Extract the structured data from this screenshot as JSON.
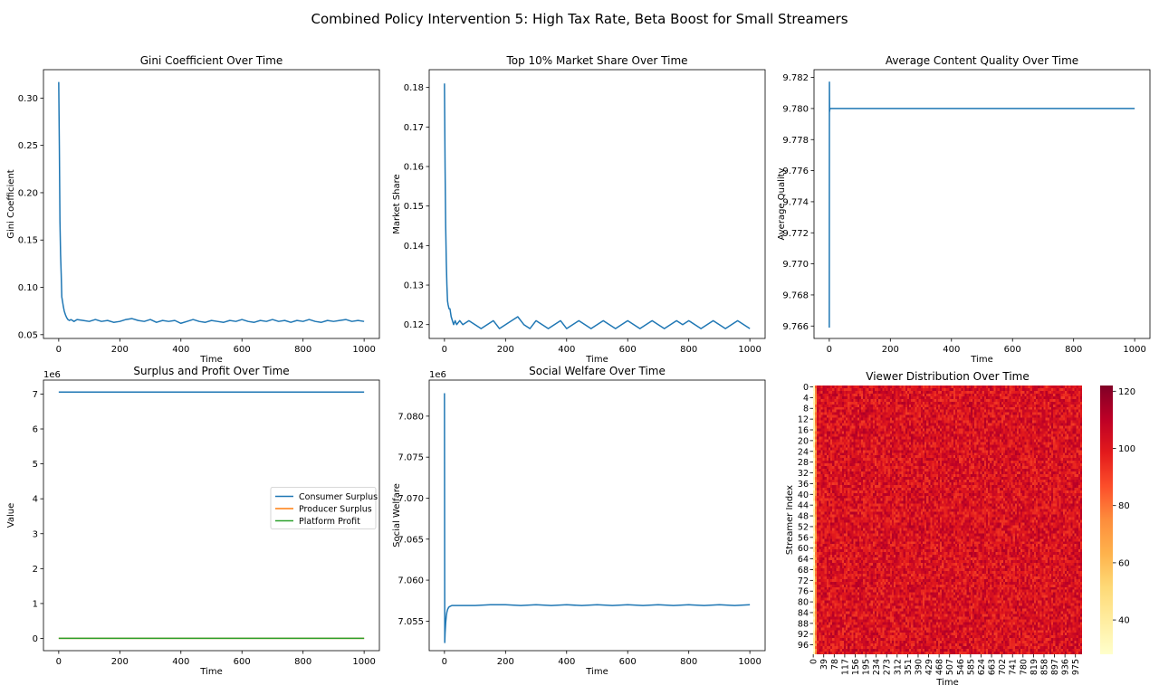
{
  "figure": {
    "suptitle": "Combined Policy Intervention 5: High Tax Rate, Beta Boost for Small Streamers"
  },
  "colors": {
    "blue": "#1f77b4",
    "orange": "#ff7f0e",
    "green": "#2ca02c",
    "axis": "#000000"
  },
  "chart_data": [
    {
      "id": "gini",
      "type": "line",
      "title": "Gini Coefficient Over Time",
      "xlabel": "Time",
      "ylabel": "Gini Coefficient",
      "xlim": [
        -50,
        1050
      ],
      "ylim": [
        0.046,
        0.33
      ],
      "xticks": [
        0,
        200,
        400,
        600,
        800,
        1000
      ],
      "yticks": [
        0.05,
        0.1,
        0.15,
        0.2,
        0.25,
        0.3
      ],
      "ytick_labels": [
        "0.05",
        "0.10",
        "0.15",
        "0.20",
        "0.25",
        "0.30"
      ],
      "series": [
        {
          "color": "#1f77b4",
          "x": [
            0,
            2,
            4,
            6,
            8,
            10,
            12,
            15,
            18,
            22,
            26,
            30,
            35,
            40,
            50,
            60,
            80,
            100,
            120,
            140,
            160,
            180,
            200,
            220,
            240,
            260,
            280,
            300,
            320,
            340,
            360,
            380,
            400,
            420,
            440,
            460,
            480,
            500,
            520,
            540,
            560,
            580,
            600,
            620,
            640,
            660,
            680,
            700,
            720,
            740,
            760,
            780,
            800,
            820,
            840,
            860,
            880,
            900,
            920,
            940,
            960,
            980,
            1000
          ],
          "y": [
            0.317,
            0.25,
            0.17,
            0.135,
            0.115,
            0.09,
            0.086,
            0.08,
            0.075,
            0.071,
            0.068,
            0.066,
            0.065,
            0.066,
            0.064,
            0.066,
            0.065,
            0.064,
            0.066,
            0.064,
            0.065,
            0.063,
            0.064,
            0.066,
            0.067,
            0.065,
            0.064,
            0.066,
            0.063,
            0.065,
            0.064,
            0.065,
            0.062,
            0.064,
            0.066,
            0.064,
            0.063,
            0.065,
            0.064,
            0.063,
            0.065,
            0.064,
            0.066,
            0.064,
            0.063,
            0.065,
            0.064,
            0.066,
            0.064,
            0.065,
            0.063,
            0.065,
            0.064,
            0.066,
            0.064,
            0.063,
            0.065,
            0.064,
            0.065,
            0.066,
            0.064,
            0.065,
            0.064
          ]
        }
      ]
    },
    {
      "id": "top10",
      "type": "line",
      "title": "Top 10% Market Share Over Time",
      "xlabel": "Time",
      "ylabel": "Market Share",
      "xlim": [
        -50,
        1050
      ],
      "ylim": [
        0.1165,
        0.1845
      ],
      "xticks": [
        0,
        200,
        400,
        600,
        800,
        1000
      ],
      "yticks": [
        0.12,
        0.13,
        0.14,
        0.15,
        0.16,
        0.17,
        0.18
      ],
      "ytick_labels": [
        "0.12",
        "0.13",
        "0.14",
        "0.15",
        "0.16",
        "0.17",
        "0.18"
      ],
      "series": [
        {
          "color": "#1f77b4",
          "x": [
            0,
            2,
            4,
            6,
            8,
            10,
            12,
            15,
            18,
            22,
            26,
            30,
            35,
            40,
            50,
            60,
            80,
            100,
            120,
            140,
            160,
            180,
            200,
            220,
            240,
            260,
            280,
            300,
            320,
            340,
            360,
            380,
            400,
            420,
            440,
            460,
            480,
            500,
            520,
            540,
            560,
            580,
            600,
            620,
            640,
            660,
            680,
            700,
            720,
            740,
            760,
            780,
            800,
            820,
            840,
            860,
            880,
            900,
            920,
            940,
            960,
            980,
            1000
          ],
          "y": [
            0.181,
            0.16,
            0.145,
            0.136,
            0.13,
            0.126,
            0.125,
            0.124,
            0.124,
            0.122,
            0.121,
            0.12,
            0.121,
            0.12,
            0.121,
            0.12,
            0.121,
            0.12,
            0.119,
            0.12,
            0.121,
            0.119,
            0.12,
            0.121,
            0.122,
            0.12,
            0.119,
            0.121,
            0.12,
            0.119,
            0.12,
            0.121,
            0.119,
            0.12,
            0.121,
            0.12,
            0.119,
            0.12,
            0.121,
            0.12,
            0.119,
            0.12,
            0.121,
            0.12,
            0.119,
            0.12,
            0.121,
            0.12,
            0.119,
            0.12,
            0.121,
            0.12,
            0.121,
            0.12,
            0.119,
            0.12,
            0.121,
            0.12,
            0.119,
            0.12,
            0.121,
            0.12,
            0.119
          ]
        }
      ]
    },
    {
      "id": "quality",
      "type": "line",
      "title": "Average Content Quality Over Time",
      "xlabel": "Time",
      "ylabel": "Average Quality",
      "xlim": [
        -50,
        1050
      ],
      "ylim": [
        9.7652,
        9.7825
      ],
      "xticks": [
        0,
        200,
        400,
        600,
        800,
        1000
      ],
      "yticks": [
        9.766,
        9.768,
        9.77,
        9.772,
        9.774,
        9.776,
        9.778,
        9.78,
        9.782
      ],
      "ytick_labels": [
        "9.766",
        "9.768",
        "9.770",
        "9.772",
        "9.774",
        "9.776",
        "9.778",
        "9.780",
        "9.782"
      ],
      "series": [
        {
          "color": "#1f77b4",
          "x": [
            0,
            0.5,
            1,
            2,
            1000
          ],
          "y": [
            9.7659,
            9.7817,
            9.7798,
            9.78,
            9.78
          ]
        }
      ]
    },
    {
      "id": "surplus",
      "type": "line",
      "title": "Surplus and Profit Over Time",
      "xlabel": "Time",
      "ylabel": "Value",
      "offset_label": "1e6",
      "xlim": [
        -50,
        1050
      ],
      "ylim": [
        -0.35,
        7.4
      ],
      "xticks": [
        0,
        200,
        400,
        600,
        800,
        1000
      ],
      "yticks": [
        0,
        1,
        2,
        3,
        4,
        5,
        6,
        7
      ],
      "ytick_labels": [
        "0",
        "1",
        "2",
        "3",
        "4",
        "5",
        "6",
        "7"
      ],
      "legend_position": "center-right",
      "series": [
        {
          "name": "Consumer Surplus",
          "color": "#1f77b4",
          "x": [
            0,
            1000
          ],
          "y": [
            7.056,
            7.056
          ]
        },
        {
          "name": "Producer Surplus",
          "color": "#ff7f0e",
          "x": [
            0,
            1000
          ],
          "y": [
            0.004,
            0.004
          ]
        },
        {
          "name": "Platform Profit",
          "color": "#2ca02c",
          "x": [
            0,
            1000
          ],
          "y": [
            0.004,
            0.004
          ]
        }
      ]
    },
    {
      "id": "welfare",
      "type": "line",
      "title": "Social Welfare Over Time",
      "xlabel": "Time",
      "ylabel": "Social Welfare",
      "offset_label": "1e6",
      "xlim": [
        -50,
        1050
      ],
      "ylim": [
        7.0514,
        7.0844
      ],
      "xticks": [
        0,
        200,
        400,
        600,
        800,
        1000
      ],
      "yticks": [
        7.055,
        7.06,
        7.065,
        7.07,
        7.075,
        7.08
      ],
      "ytick_labels": [
        "7.055",
        "7.060",
        "7.065",
        "7.070",
        "7.075",
        "7.080"
      ],
      "series": [
        {
          "color": "#1f77b4",
          "x": [
            0,
            1,
            2,
            4,
            6,
            8,
            10,
            14,
            18,
            24,
            30,
            40,
            50,
            60,
            80,
            100,
            150,
            200,
            250,
            300,
            350,
            400,
            450,
            500,
            550,
            600,
            650,
            700,
            750,
            800,
            850,
            900,
            950,
            1000
          ],
          "y": [
            7.0828,
            7.0524,
            7.0535,
            7.0548,
            7.0556,
            7.0561,
            7.0564,
            7.0567,
            7.0568,
            7.0569,
            7.0569,
            7.0569,
            7.0569,
            7.0569,
            7.0569,
            7.0569,
            7.057,
            7.057,
            7.0569,
            7.057,
            7.0569,
            7.057,
            7.0569,
            7.057,
            7.0569,
            7.057,
            7.0569,
            7.057,
            7.0569,
            7.057,
            7.0569,
            7.057,
            7.0569,
            7.057
          ]
        }
      ]
    },
    {
      "id": "viewers",
      "type": "heatmap",
      "title": "Viewer Distribution Over Time",
      "xlabel": "Time",
      "ylabel": "Streamer Index",
      "n_rows": 100,
      "n_cols": 1000,
      "value_range": [
        28,
        122
      ],
      "colormap": "YlOrRd",
      "typical_value": 102,
      "first_step_value": 34,
      "colorbar_ticks": [
        40,
        60,
        80,
        100,
        120
      ],
      "xtick_labels": [
        "0",
        "39",
        "78",
        "117",
        "156",
        "195",
        "234",
        "273",
        "312",
        "351",
        "390",
        "429",
        "468",
        "507",
        "546",
        "585",
        "624",
        "663",
        "702",
        "741",
        "780",
        "819",
        "858",
        "897",
        "936",
        "975"
      ],
      "ytick_labels": [
        "0",
        "4",
        "8",
        "12",
        "16",
        "20",
        "24",
        "28",
        "32",
        "36",
        "40",
        "44",
        "48",
        "52",
        "56",
        "60",
        "64",
        "68",
        "72",
        "76",
        "80",
        "84",
        "88",
        "92",
        "96"
      ]
    }
  ]
}
